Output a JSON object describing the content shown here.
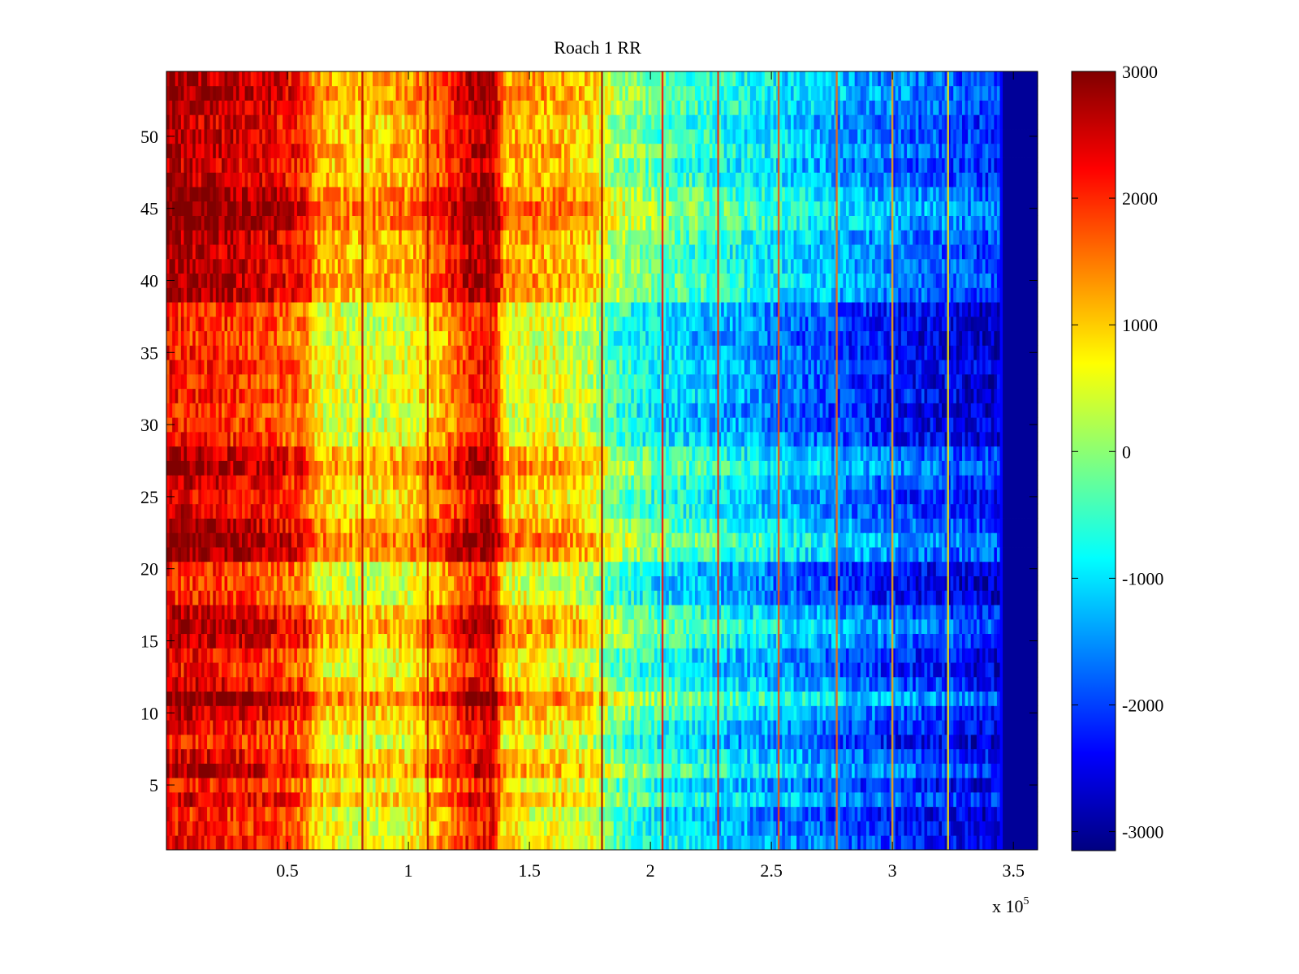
{
  "chart_data": {
    "type": "heatmap",
    "title": "Roach 1 RR",
    "xlabel": "",
    "ylabel": "",
    "x_exponent_label": "x 10",
    "x_exponent_power": "5",
    "xlim": [
      0,
      360000
    ],
    "ylim": [
      0.5,
      54.5
    ],
    "x_ticks": [
      {
        "value": 50000,
        "label": "0.5"
      },
      {
        "value": 100000,
        "label": "1"
      },
      {
        "value": 150000,
        "label": "1.5"
      },
      {
        "value": 200000,
        "label": "2"
      },
      {
        "value": 250000,
        "label": "2.5"
      },
      {
        "value": 300000,
        "label": "3"
      },
      {
        "value": 350000,
        "label": "3.5"
      }
    ],
    "y_ticks": [
      {
        "value": 5,
        "label": "5"
      },
      {
        "value": 10,
        "label": "10"
      },
      {
        "value": 15,
        "label": "15"
      },
      {
        "value": 20,
        "label": "20"
      },
      {
        "value": 25,
        "label": "25"
      },
      {
        "value": 30,
        "label": "30"
      },
      {
        "value": 35,
        "label": "35"
      },
      {
        "value": 40,
        "label": "40"
      },
      {
        "value": 45,
        "label": "45"
      },
      {
        "value": 50,
        "label": "50"
      }
    ],
    "rows": 54,
    "colormap": "jet",
    "clim": [
      -3150,
      3000
    ],
    "colorbar_ticks": [
      {
        "value": 3000,
        "label": "3000"
      },
      {
        "value": 2000,
        "label": "2000"
      },
      {
        "value": 1000,
        "label": "1000"
      },
      {
        "value": 0,
        "label": "0"
      },
      {
        "value": -1000,
        "label": "-1000"
      },
      {
        "value": -2000,
        "label": "-2000"
      },
      {
        "value": -3000,
        "label": "-3000"
      }
    ],
    "base_profile": [
      {
        "x": 0,
        "v": 2400
      },
      {
        "x": 20000,
        "v": 2300
      },
      {
        "x": 40000,
        "v": 2100
      },
      {
        "x": 58000,
        "v": 1700
      },
      {
        "x": 62000,
        "v": 900
      },
      {
        "x": 80000,
        "v": 700
      },
      {
        "x": 100000,
        "v": 800
      },
      {
        "x": 115000,
        "v": 1500
      },
      {
        "x": 125000,
        "v": 2200
      },
      {
        "x": 135000,
        "v": 2400
      },
      {
        "x": 140000,
        "v": 900
      },
      {
        "x": 160000,
        "v": 800
      },
      {
        "x": 175000,
        "v": 600
      },
      {
        "x": 185000,
        "v": -200
      },
      {
        "x": 205000,
        "v": -700
      },
      {
        "x": 250000,
        "v": -1300
      },
      {
        "x": 300000,
        "v": -2000
      },
      {
        "x": 330000,
        "v": -2300
      },
      {
        "x": 345000,
        "v": -2400
      },
      {
        "x": 346000,
        "v": -3000
      },
      {
        "x": 360000,
        "v": -3000
      }
    ],
    "stripes": [
      {
        "x": 81000,
        "v": 2600
      },
      {
        "x": 108000,
        "v": 2700
      },
      {
        "x": 134000,
        "v": 2600
      },
      {
        "x": 180000,
        "v": 2800
      },
      {
        "x": 205000,
        "v": 2200
      },
      {
        "x": 228000,
        "v": 2000
      },
      {
        "x": 253000,
        "v": 1800
      },
      {
        "x": 277000,
        "v": 1600
      },
      {
        "x": 300000,
        "v": 1200
      },
      {
        "x": 323000,
        "v": 800
      }
    ],
    "row_offsets": [
      {
        "y": 1,
        "v": -100
      },
      {
        "y": 2,
        "v": -200
      },
      {
        "y": 3,
        "v": -300
      },
      {
        "y": 4,
        "v": 200
      },
      {
        "y": 5,
        "v": -200
      },
      {
        "y": 6,
        "v": 400
      },
      {
        "y": 7,
        "v": 100
      },
      {
        "y": 8,
        "v": -300
      },
      {
        "y": 9,
        "v": -100
      },
      {
        "y": 10,
        "v": 200
      },
      {
        "y": 11,
        "v": 700
      },
      {
        "y": 12,
        "v": 100
      },
      {
        "y": 13,
        "v": -200
      },
      {
        "y": 14,
        "v": -100
      },
      {
        "y": 15,
        "v": 300
      },
      {
        "y": 16,
        "v": 500
      },
      {
        "y": 17,
        "v": 200
      },
      {
        "y": 18,
        "v": -300
      },
      {
        "y": 19,
        "v": -400
      },
      {
        "y": 20,
        "v": -300
      },
      {
        "y": 21,
        "v": 500
      },
      {
        "y": 22,
        "v": 700
      },
      {
        "y": 23,
        "v": 400
      },
      {
        "y": 24,
        "v": 100
      },
      {
        "y": 25,
        "v": 0
      },
      {
        "y": 26,
        "v": 200
      },
      {
        "y": 27,
        "v": 500
      },
      {
        "y": 28,
        "v": 300
      },
      {
        "y": 29,
        "v": -200
      },
      {
        "y": 30,
        "v": -300
      },
      {
        "y": 31,
        "v": -400
      },
      {
        "y": 32,
        "v": -200
      },
      {
        "y": 33,
        "v": -300
      },
      {
        "y": 34,
        "v": -200
      },
      {
        "y": 35,
        "v": -300
      },
      {
        "y": 36,
        "v": -400
      },
      {
        "y": 37,
        "v": -300
      },
      {
        "y": 38,
        "v": -300
      },
      {
        "y": 39,
        "v": 400
      },
      {
        "y": 40,
        "v": 500
      },
      {
        "y": 41,
        "v": 400
      },
      {
        "y": 42,
        "v": 300
      },
      {
        "y": 43,
        "v": 400
      },
      {
        "y": 44,
        "v": 700
      },
      {
        "y": 45,
        "v": 800
      },
      {
        "y": 46,
        "v": 600
      },
      {
        "y": 47,
        "v": 300
      },
      {
        "y": 48,
        "v": 200
      },
      {
        "y": 49,
        "v": 400
      },
      {
        "y": 50,
        "v": 300
      },
      {
        "y": 51,
        "v": 200
      },
      {
        "y": 52,
        "v": 400
      },
      {
        "y": 53,
        "v": 500
      },
      {
        "y": 54,
        "v": 400
      }
    ]
  }
}
